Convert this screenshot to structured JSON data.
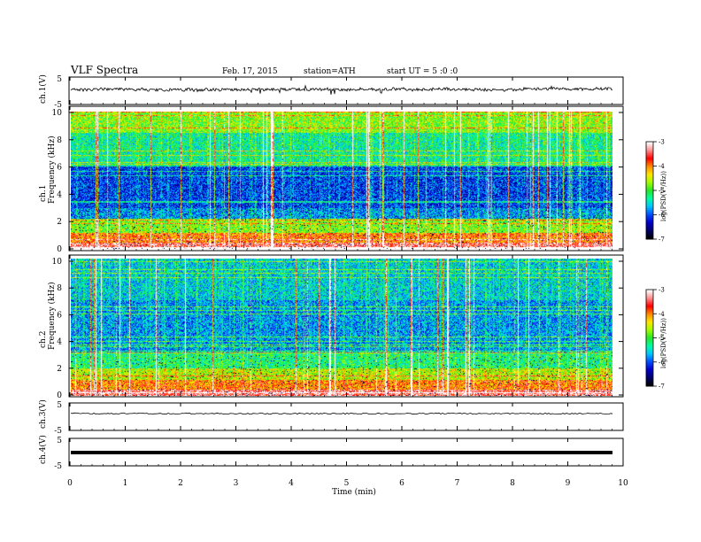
{
  "header": {
    "title": "VLF Spectra",
    "date": "Feb. 17, 2015",
    "station": "station=ATH",
    "start": "start UT =  5 :0 :0"
  },
  "chart_data": [
    {
      "type": "line",
      "panel": "ch1_waveform",
      "ylabel": "ch.1(V)",
      "ylim": [
        -5,
        5
      ],
      "yticks": [
        "5",
        "-5"
      ],
      "series": [
        {
          "values": [
            1,
            0.6,
            1.2,
            0.4,
            0.9,
            0.2,
            0.8,
            0.5,
            1.1,
            0.3,
            0.7,
            0.9,
            0.2,
            1.0,
            0.6,
            0.4,
            0.8,
            1.2,
            0.5,
            0.3,
            0.9,
            0.6,
            1.0,
            0.4,
            0.7
          ]
        }
      ]
    },
    {
      "type": "heatmap",
      "panel": "ch1_spectrogram",
      "ylabel": "ch.1\nFrequency (kHz)",
      "ylim": [
        0,
        10
      ],
      "yticks": [
        "0",
        "2",
        "4",
        "6",
        "8",
        "10"
      ],
      "colorbar": {
        "label": "log(PSD(V²/Hz))",
        "ticks": [
          "-3",
          "-4",
          "-5",
          "-6",
          "-7"
        ],
        "range": [
          -7,
          -3
        ]
      }
    },
    {
      "type": "heatmap",
      "panel": "ch2_spectrogram",
      "ylabel": "ch.2\nFrequency (kHz)",
      "ylim": [
        0,
        10
      ],
      "yticks": [
        "0",
        "2",
        "4",
        "6",
        "8",
        "10"
      ],
      "colorbar": {
        "label": "log(PSD(V²/Hz))",
        "ticks": [
          "-3",
          "-4",
          "-5",
          "-6",
          "-7"
        ],
        "range": [
          -7,
          -3
        ]
      }
    },
    {
      "type": "line",
      "panel": "ch3_waveform",
      "ylabel": "ch.3(V)",
      "ylim": [
        -5,
        5
      ],
      "yticks": [
        "5",
        "-5"
      ]
    },
    {
      "type": "line",
      "panel": "ch4_waveform",
      "ylabel": "ch.4(V)",
      "ylim": [
        -5,
        5
      ],
      "yticks": [
        "5",
        "-5"
      ]
    }
  ],
  "xaxis": {
    "label": "Time (min)",
    "ticks": [
      "0",
      "1",
      "2",
      "3",
      "4",
      "5",
      "6",
      "7",
      "8",
      "9",
      "10"
    ],
    "xlim": [
      0,
      10
    ],
    "data_end": 9.8
  },
  "colormap": [
    "#000000",
    "#00006e",
    "#0000cc",
    "#0050ff",
    "#00c8ff",
    "#00ffa0",
    "#28e628",
    "#a0ff00",
    "#ffe600",
    "#ff8c00",
    "#ff0000",
    "#ff8c8c",
    "#ffffff"
  ]
}
